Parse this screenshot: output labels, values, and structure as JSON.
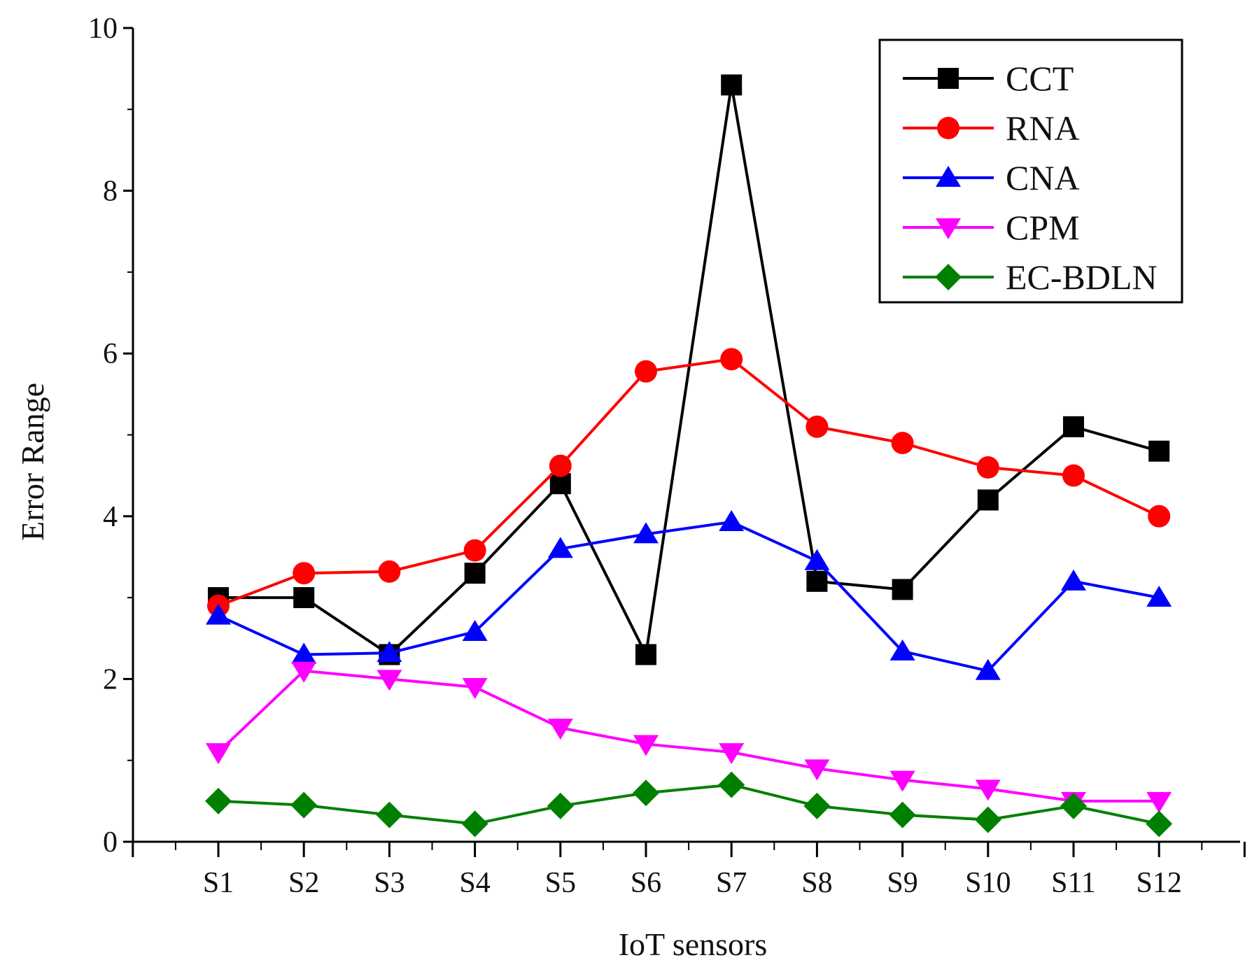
{
  "chart_data": {
    "type": "line",
    "title": "",
    "xlabel": "IoT sensors",
    "ylabel": "Error Range",
    "categories": [
      "S1",
      "S2",
      "S3",
      "S4",
      "S5",
      "S6",
      "S7",
      "S8",
      "S9",
      "S10",
      "S11",
      "S12"
    ],
    "ylim": [
      0,
      10
    ],
    "yticks": [
      "0",
      "2",
      "4",
      "6",
      "8",
      "10"
    ],
    "grid": false,
    "legend_position": "top-right",
    "series": [
      {
        "name": "CCT",
        "color": "#000000",
        "marker": "square",
        "values": [
          3.0,
          3.0,
          2.3,
          3.3,
          4.4,
          2.3,
          9.3,
          3.2,
          3.1,
          4.2,
          5.1,
          4.8
        ]
      },
      {
        "name": "RNA",
        "color": "#ff0000",
        "marker": "circle",
        "values": [
          2.9,
          3.3,
          3.32,
          3.58,
          4.62,
          5.78,
          5.93,
          5.1,
          4.9,
          4.6,
          4.5,
          4.0
        ]
      },
      {
        "name": "CNA",
        "color": "#0000ff",
        "marker": "triangle-up",
        "values": [
          2.78,
          2.3,
          2.32,
          2.58,
          3.6,
          3.78,
          3.93,
          3.45,
          2.34,
          2.1,
          3.2,
          3.0
        ]
      },
      {
        "name": "CPM",
        "color": "#ff00ff",
        "marker": "triangle-down",
        "values": [
          1.1,
          2.1,
          2.0,
          1.9,
          1.4,
          1.2,
          1.1,
          0.9,
          0.76,
          0.65,
          0.5,
          0.5
        ]
      },
      {
        "name": "EC-BDLN",
        "color": "#008000",
        "marker": "diamond",
        "values": [
          0.5,
          0.45,
          0.33,
          0.22,
          0.44,
          0.6,
          0.7,
          0.44,
          0.33,
          0.27,
          0.44,
          0.22
        ]
      }
    ]
  }
}
